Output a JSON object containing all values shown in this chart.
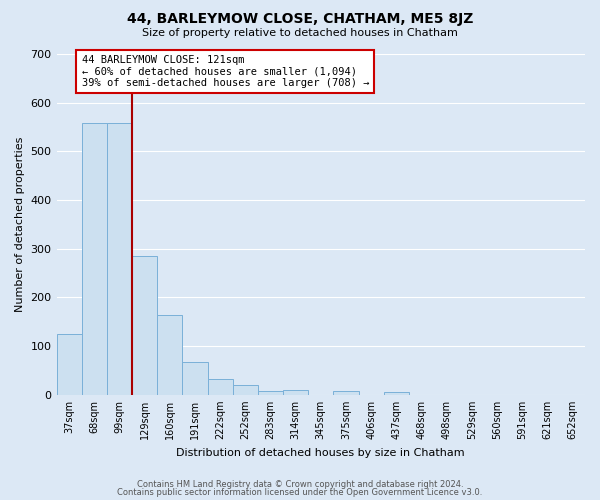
{
  "title": "44, BARLEYMOW CLOSE, CHATHAM, ME5 8JZ",
  "subtitle": "Size of property relative to detached houses in Chatham",
  "xlabel": "Distribution of detached houses by size in Chatham",
  "ylabel": "Number of detached properties",
  "bar_labels": [
    "37sqm",
    "68sqm",
    "99sqm",
    "129sqm",
    "160sqm",
    "191sqm",
    "222sqm",
    "252sqm",
    "283sqm",
    "314sqm",
    "345sqm",
    "375sqm",
    "406sqm",
    "437sqm",
    "468sqm",
    "498sqm",
    "529sqm",
    "560sqm",
    "591sqm",
    "621sqm",
    "652sqm"
  ],
  "bar_values": [
    125,
    558,
    558,
    285,
    163,
    68,
    33,
    20,
    8,
    10,
    0,
    8,
    0,
    5,
    0,
    0,
    0,
    0,
    0,
    0,
    0
  ],
  "bar_color": "#cce0f0",
  "bar_edge_color": "#7ab0d8",
  "highlight_line_color": "#aa0000",
  "annotation_text": "44 BARLEYMOW CLOSE: 121sqm\n← 60% of detached houses are smaller (1,094)\n39% of semi-detached houses are larger (708) →",
  "annotation_box_facecolor": "#ffffff",
  "annotation_box_edgecolor": "#cc0000",
  "ylim": [
    0,
    700
  ],
  "yticks": [
    0,
    100,
    200,
    300,
    400,
    500,
    600,
    700
  ],
  "footer_line1": "Contains HM Land Registry data © Crown copyright and database right 2024.",
  "footer_line2": "Contains public sector information licensed under the Open Government Licence v3.0.",
  "bg_color": "#dce8f5",
  "plot_bg_color": "#dce8f5",
  "grid_color": "#ffffff",
  "title_fontsize": 10,
  "subtitle_fontsize": 8,
  "ylabel_fontsize": 8,
  "xlabel_fontsize": 8,
  "tick_fontsize": 7,
  "footer_fontsize": 6
}
